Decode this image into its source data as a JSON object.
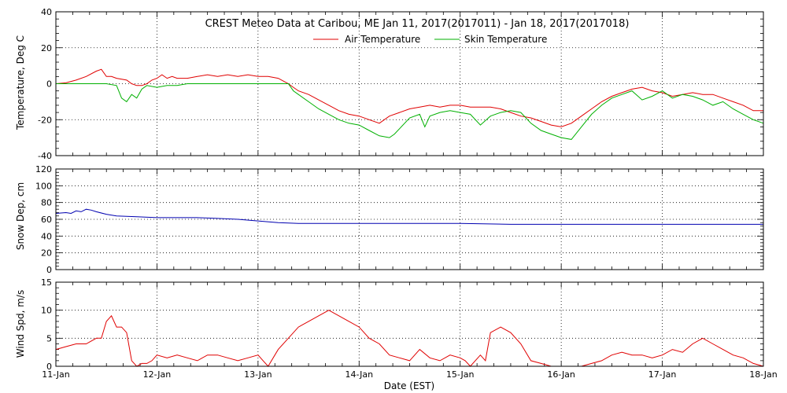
{
  "chart_data": [
    {
      "type": "line",
      "title": "CREST Meteo Data at Caribou, ME   Jan 11, 2017(2017011) - Jan 18, 2017(2017018)",
      "ylabel": "Temperature, Deg C",
      "xlim": [
        0,
        7
      ],
      "ylim": [
        -40,
        40
      ],
      "yticks": [
        -40,
        -20,
        0,
        20,
        40
      ],
      "grid": true,
      "legend": "top-center",
      "series": [
        {
          "name": "Air Temperature",
          "color": "#e00000",
          "x": [
            0,
            0.1,
            0.2,
            0.3,
            0.4,
            0.45,
            0.5,
            0.55,
            0.6,
            0.7,
            0.75,
            0.8,
            0.85,
            0.9,
            0.95,
            1.0,
            1.05,
            1.1,
            1.15,
            1.2,
            1.3,
            1.4,
            1.5,
            1.6,
            1.7,
            1.8,
            1.9,
            2.0,
            2.1,
            2.2,
            2.3,
            2.35,
            2.4,
            2.5,
            2.6,
            2.7,
            2.8,
            2.9,
            3.0,
            3.1,
            3.2,
            3.3,
            3.4,
            3.5,
            3.6,
            3.7,
            3.8,
            3.9,
            4.0,
            4.1,
            4.2,
            4.3,
            4.4,
            4.5,
            4.6,
            4.7,
            4.8,
            4.9,
            5.0,
            5.1,
            5.2,
            5.3,
            5.4,
            5.5,
            5.6,
            5.7,
            5.8,
            5.9,
            6.0,
            6.1,
            6.2,
            6.3,
            6.4,
            6.5,
            6.6,
            6.7,
            6.8,
            6.9,
            7.0
          ],
          "y": [
            0,
            0.5,
            2,
            4,
            7,
            8,
            4,
            4,
            3,
            2,
            0,
            -1,
            -1,
            0,
            2,
            3,
            5,
            3,
            4,
            3,
            3,
            4,
            5,
            4,
            5,
            4,
            5,
            4,
            4,
            3,
            0,
            -2,
            -4,
            -6,
            -9,
            -12,
            -15,
            -17,
            -18,
            -20,
            -22,
            -18,
            -16,
            -14,
            -13,
            -12,
            -13,
            -12,
            -12,
            -13,
            -13,
            -13,
            -14,
            -16,
            -18,
            -19,
            -21,
            -23,
            -24,
            -22,
            -18,
            -14,
            -10,
            -7,
            -5,
            -3,
            -2,
            -4,
            -5,
            -7,
            -6,
            -5,
            -6,
            -6,
            -8,
            -10,
            -12,
            -15,
            -15
          ]
        },
        {
          "name": "Skin Temperature",
          "color": "#00b000",
          "x": [
            0,
            0.1,
            0.2,
            0.3,
            0.4,
            0.5,
            0.6,
            0.65,
            0.7,
            0.75,
            0.8,
            0.85,
            0.9,
            1.0,
            1.1,
            1.2,
            1.3,
            1.4,
            1.5,
            1.6,
            1.7,
            1.8,
            1.9,
            2.0,
            2.1,
            2.2,
            2.3,
            2.35,
            2.4,
            2.5,
            2.6,
            2.7,
            2.8,
            2.9,
            3.0,
            3.1,
            3.2,
            3.3,
            3.35,
            3.4,
            3.5,
            3.6,
            3.65,
            3.7,
            3.8,
            3.9,
            4.0,
            4.1,
            4.2,
            4.3,
            4.4,
            4.5,
            4.6,
            4.7,
            4.8,
            4.9,
            5.0,
            5.1,
            5.2,
            5.3,
            5.4,
            5.5,
            5.6,
            5.7,
            5.8,
            5.9,
            6.0,
            6.1,
            6.2,
            6.3,
            6.4,
            6.5,
            6.6,
            6.7,
            6.8,
            6.9,
            7.0
          ],
          "y": [
            0,
            0,
            0,
            0,
            0,
            0,
            -1,
            -8,
            -10,
            -6,
            -8,
            -3,
            -1,
            -2,
            -1,
            -1,
            0,
            0,
            0,
            0,
            0,
            0,
            0,
            0,
            0,
            0,
            0,
            -4,
            -6,
            -10,
            -14,
            -17,
            -20,
            -22,
            -23,
            -26,
            -29,
            -30,
            -28,
            -25,
            -19,
            -17,
            -24,
            -18,
            -16,
            -15,
            -16,
            -17,
            -23,
            -18,
            -16,
            -15,
            -16,
            -22,
            -26,
            -28,
            -30,
            -31,
            -24,
            -17,
            -12,
            -8,
            -6,
            -4,
            -9,
            -7,
            -4,
            -8,
            -6,
            -7,
            -9,
            -12,
            -10,
            -14,
            -17,
            -20,
            -22
          ]
        }
      ]
    },
    {
      "type": "line",
      "ylabel": "Snow Dep, cm",
      "xlim": [
        0,
        7
      ],
      "ylim": [
        0,
        120
      ],
      "yticks": [
        0,
        20,
        40,
        60,
        80,
        100,
        120
      ],
      "grid": true,
      "series": [
        {
          "color": "#0000b0",
          "x": [
            0,
            0.1,
            0.15,
            0.2,
            0.25,
            0.3,
            0.35,
            0.4,
            0.5,
            0.6,
            0.8,
            1.0,
            1.2,
            1.4,
            1.6,
            1.8,
            2.0,
            2.2,
            2.4,
            2.6,
            3.0,
            3.5,
            4.0,
            4.5,
            5.0,
            5.5,
            6.0,
            6.5,
            7.0
          ],
          "y": [
            67,
            68,
            67,
            70,
            69,
            72,
            71,
            69,
            66,
            64,
            63,
            62,
            62,
            62,
            61,
            60,
            58,
            56,
            55,
            55,
            55,
            55,
            55,
            54,
            54,
            54,
            54,
            54,
            54
          ]
        }
      ]
    },
    {
      "type": "line",
      "xlabel": "Date (EST)",
      "ylabel": "Wind Spd, m/s",
      "xlim": [
        0,
        7
      ],
      "ylim": [
        0,
        15
      ],
      "yticks": [
        0,
        5,
        10,
        15
      ],
      "xticks": [
        "11-Jan",
        "12-Jan",
        "13-Jan",
        "14-Jan",
        "15-Jan",
        "16-Jan",
        "17-Jan",
        "18-Jan"
      ],
      "grid": true,
      "series": [
        {
          "color": "#e00000",
          "x": [
            0,
            0.1,
            0.2,
            0.3,
            0.35,
            0.4,
            0.45,
            0.5,
            0.55,
            0.6,
            0.65,
            0.7,
            0.75,
            0.8,
            0.85,
            0.9,
            0.95,
            1.0,
            1.1,
            1.2,
            1.3,
            1.4,
            1.5,
            1.6,
            1.7,
            1.8,
            1.9,
            2.0,
            2.05,
            2.1,
            2.2,
            2.3,
            2.4,
            2.5,
            2.6,
            2.7,
            2.8,
            2.9,
            3.0,
            3.1,
            3.2,
            3.3,
            3.4,
            3.5,
            3.6,
            3.7,
            3.8,
            3.9,
            4.0,
            4.05,
            4.1,
            4.2,
            4.25,
            4.3,
            4.4,
            4.5,
            4.6,
            4.7,
            4.8,
            4.9,
            5.0,
            5.1,
            5.2,
            5.3,
            5.4,
            5.5,
            5.6,
            5.7,
            5.8,
            5.9,
            6.0,
            6.1,
            6.2,
            6.3,
            6.4,
            6.5,
            6.6,
            6.7,
            6.8,
            6.9,
            7.0
          ],
          "y": [
            3,
            3.5,
            4,
            4,
            4.5,
            5,
            5,
            8,
            9,
            7,
            7,
            6,
            1,
            0,
            0.5,
            0.5,
            1,
            2,
            1.5,
            2,
            1.5,
            1,
            2,
            2,
            1.5,
            1,
            1.5,
            2,
            1,
            0,
            3,
            5,
            7,
            8,
            9,
            10,
            9,
            8,
            7,
            5,
            4,
            2,
            1.5,
            1,
            3,
            1.5,
            1,
            2,
            1.5,
            1,
            0,
            2,
            1,
            6,
            7,
            6,
            4,
            1,
            0.5,
            0,
            0,
            0,
            0,
            0.5,
            1,
            2,
            2.5,
            2,
            2,
            1.5,
            2,
            3,
            2.5,
            4,
            5,
            4,
            3,
            2,
            1.5,
            0.5,
            0
          ]
        }
      ]
    }
  ]
}
